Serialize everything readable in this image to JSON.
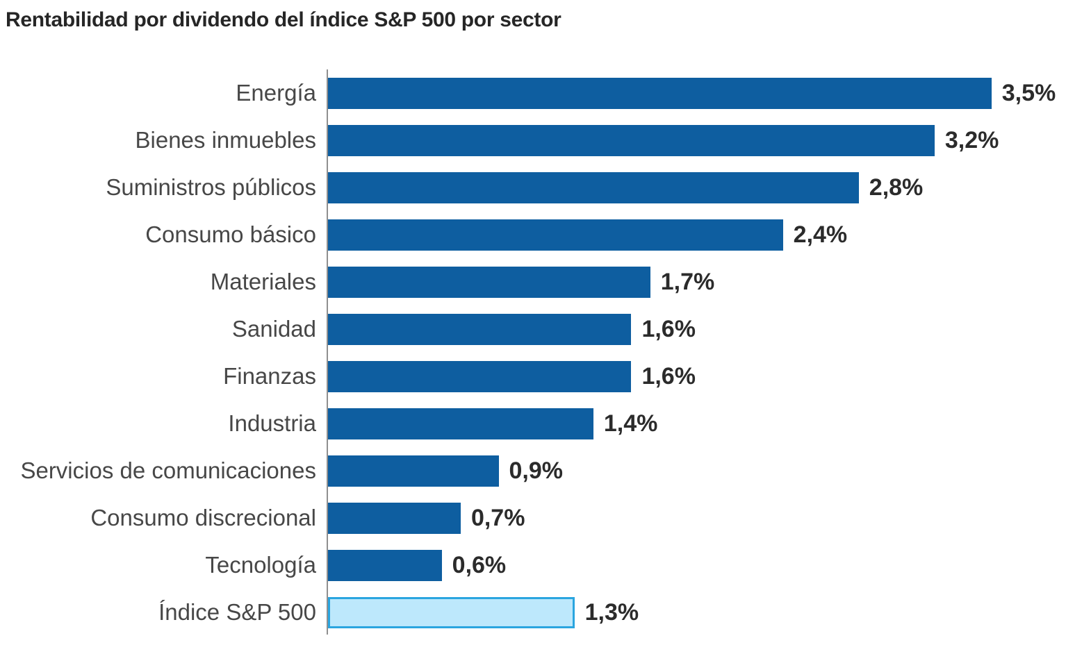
{
  "chart_data": {
    "type": "bar",
    "orientation": "horizontal",
    "title": "Rentabilidad por dividendo del índice S&P 500 por sector",
    "categories": [
      "Energía",
      "Bienes inmuebles",
      "Suministros públicos",
      "Consumo básico",
      "Materiales",
      "Sanidad",
      "Finanzas",
      "Industria",
      "Servicios de comunicaciones",
      "Consumo discrecional",
      "Tecnología",
      "Índice S&P 500"
    ],
    "values": [
      3.5,
      3.2,
      2.8,
      2.4,
      1.7,
      1.6,
      1.6,
      1.4,
      0.9,
      0.7,
      0.6,
      1.3
    ],
    "value_labels": [
      "3,5%",
      "3,2%",
      "2,8%",
      "2,4%",
      "1,7%",
      "1,6%",
      "1,6%",
      "1,4%",
      "0,9%",
      "0,7%",
      "0,6%",
      "1,3%"
    ],
    "xlim": [
      0,
      3.5
    ],
    "grid": false,
    "legend": false,
    "highlight_index": 11,
    "colors": {
      "bar": "#0E5EA0",
      "highlight_fill": "#BDE8FC",
      "highlight_border": "#2AA5DF",
      "axis": "#8F8F8F",
      "label_text": "#474747",
      "value_text": "#2B2B2B",
      "title_text": "#262626"
    }
  }
}
